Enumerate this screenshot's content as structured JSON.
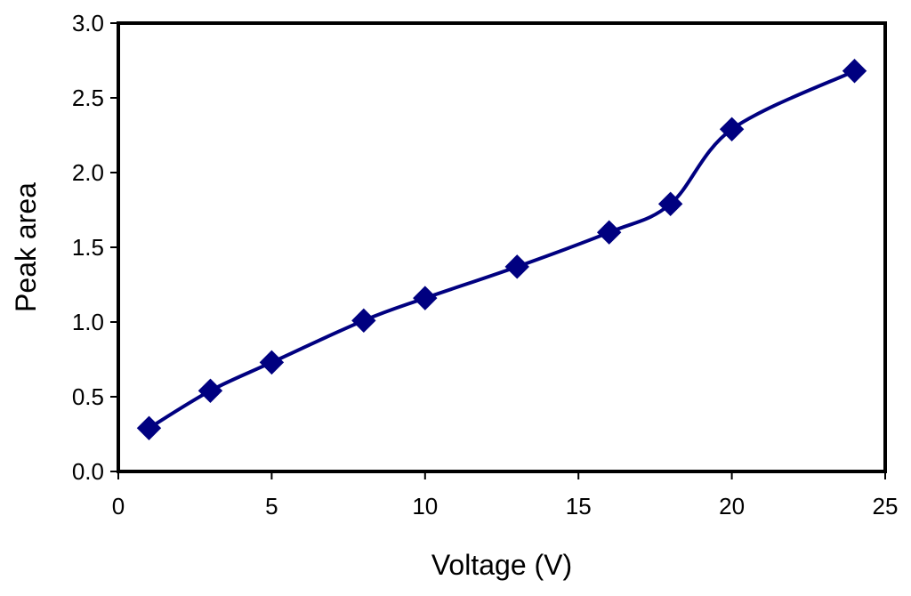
{
  "chart_data": {
    "type": "line",
    "title": "",
    "xlabel": "Voltage (V)",
    "ylabel": "Peak area",
    "xlim": [
      0,
      25
    ],
    "ylim": [
      0,
      3.0
    ],
    "xticks": [
      0,
      5,
      10,
      15,
      20,
      25
    ],
    "xtick_labels": [
      "0",
      "5",
      "10",
      "15",
      "20",
      "25"
    ],
    "yticks": [
      0,
      0.5,
      1.0,
      1.5,
      2.0,
      2.5,
      3.0
    ],
    "ytick_labels": [
      "0.0",
      "0.5",
      "1.0",
      "1.5",
      "2.0",
      "2.5",
      "3.0"
    ],
    "grid": false,
    "legend": "none",
    "series": [
      {
        "x": [
          1,
          3,
          5,
          8,
          10,
          13,
          16,
          18,
          20,
          24
        ],
        "values": [
          0.29,
          0.54,
          0.73,
          1.01,
          1.16,
          1.37,
          1.6,
          1.79,
          2.29,
          2.68
        ],
        "color": "#000080",
        "marker": "diamond",
        "smooth": true
      }
    ]
  }
}
